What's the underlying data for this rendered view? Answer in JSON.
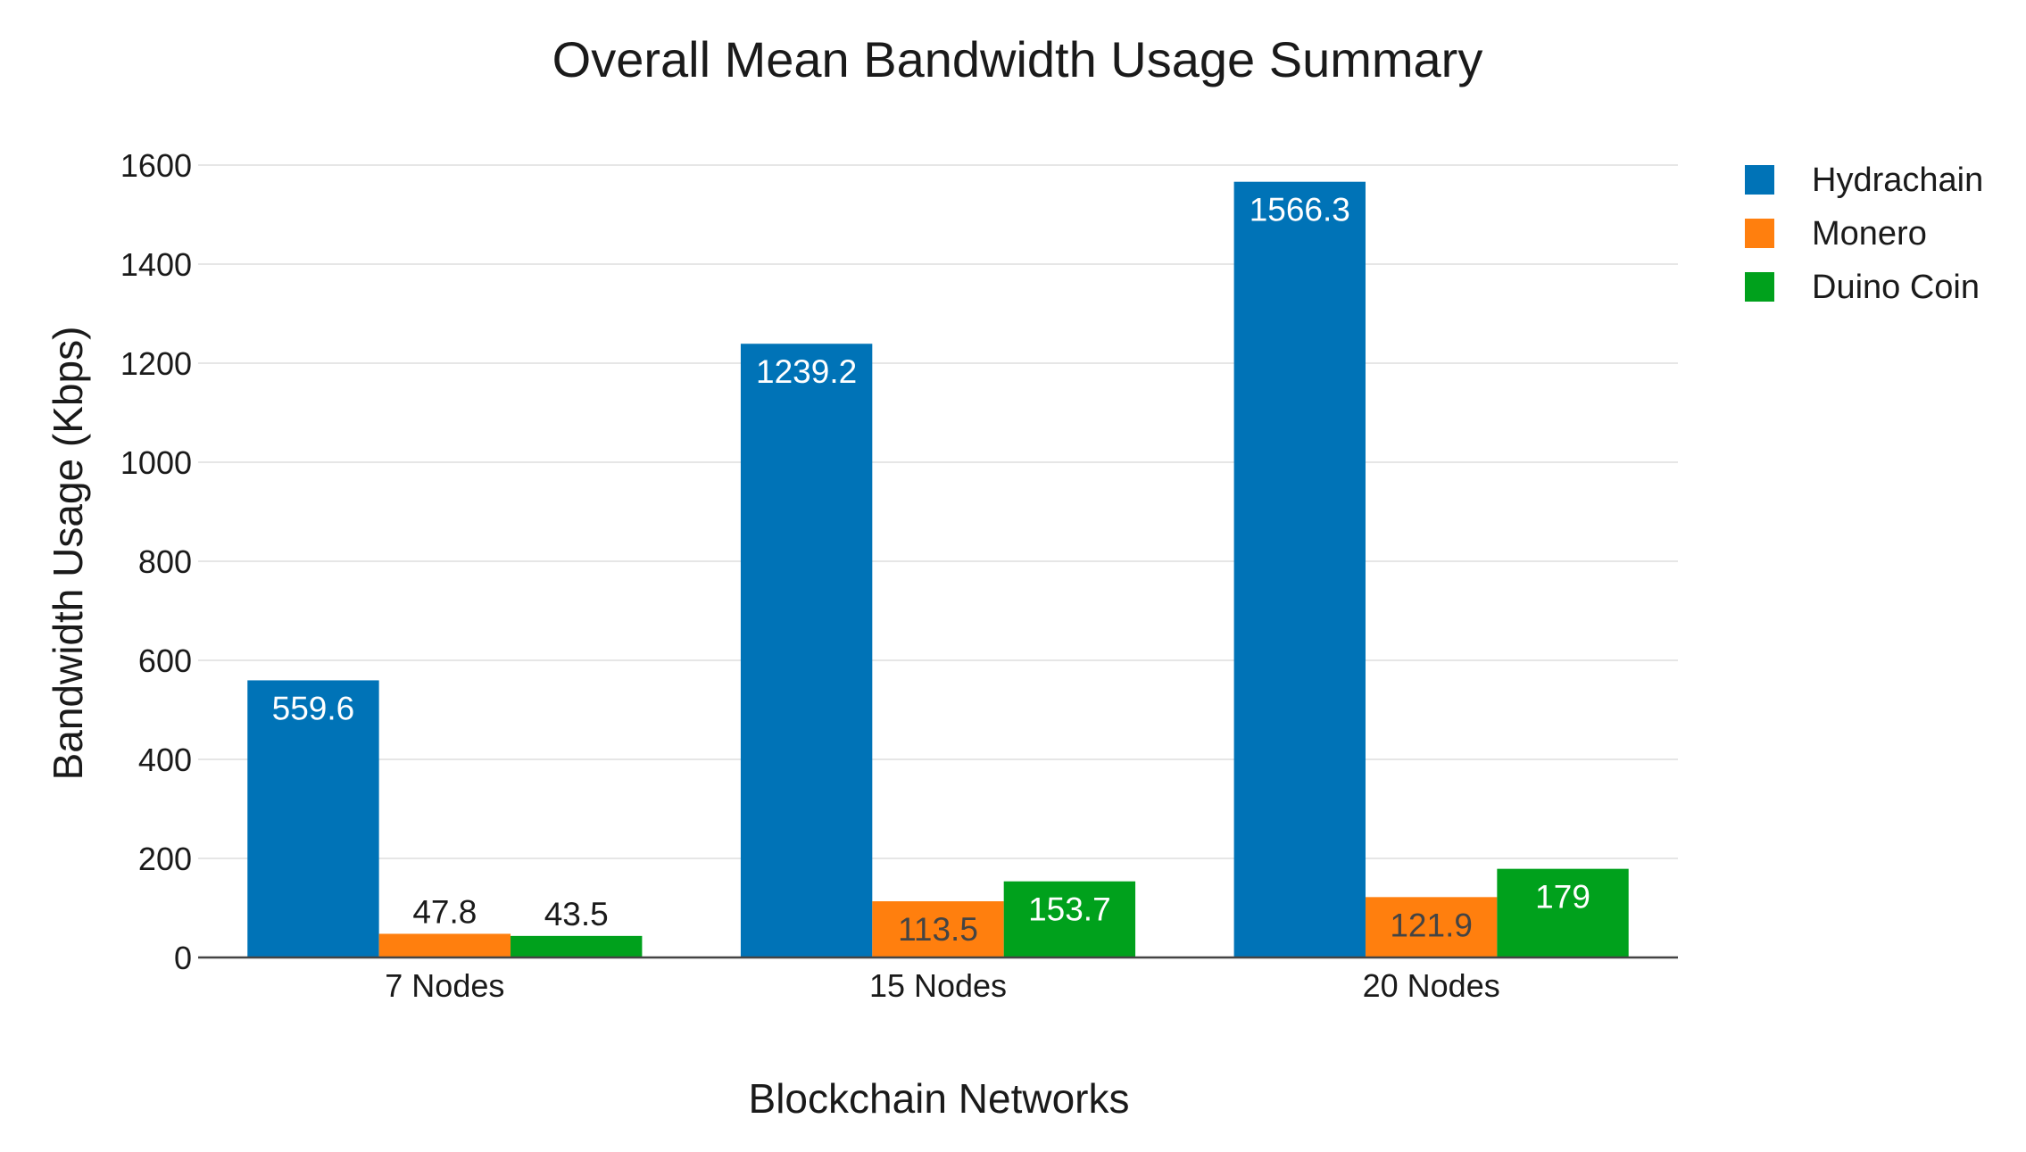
{
  "chart_data": {
    "type": "bar",
    "title": "Overall Mean Bandwidth Usage Summary",
    "xlabel": "Blockchain Networks",
    "ylabel": "Bandwidth Usage (Kbps)",
    "categories": [
      "7 Nodes",
      "15 Nodes",
      "20 Nodes"
    ],
    "series": [
      {
        "name": "Hydrachain",
        "color": "#0073b7",
        "values": [
          559.6,
          1239.2,
          1566.3
        ],
        "labels": [
          "559.6",
          "1239.2",
          "1566.3"
        ]
      },
      {
        "name": "Monero",
        "color": "#ff7f0e",
        "values": [
          47.8,
          113.5,
          121.9
        ],
        "labels": [
          "47.8",
          "113.5",
          "121.9"
        ]
      },
      {
        "name": "Duino Coin",
        "color": "#00a11c",
        "values": [
          43.5,
          153.7,
          179
        ],
        "labels": [
          "43.5",
          "153.7",
          "179"
        ]
      }
    ],
    "ylim": [
      0,
      1600
    ],
    "yticks": [
      0,
      200,
      400,
      600,
      800,
      1000,
      1200,
      1400,
      1600
    ],
    "ytick_labels": [
      "0",
      "200",
      "400",
      "600",
      "800",
      "1000",
      "1200",
      "1400",
      "1600"
    ],
    "grid": true,
    "legend_position": "top-right"
  }
}
